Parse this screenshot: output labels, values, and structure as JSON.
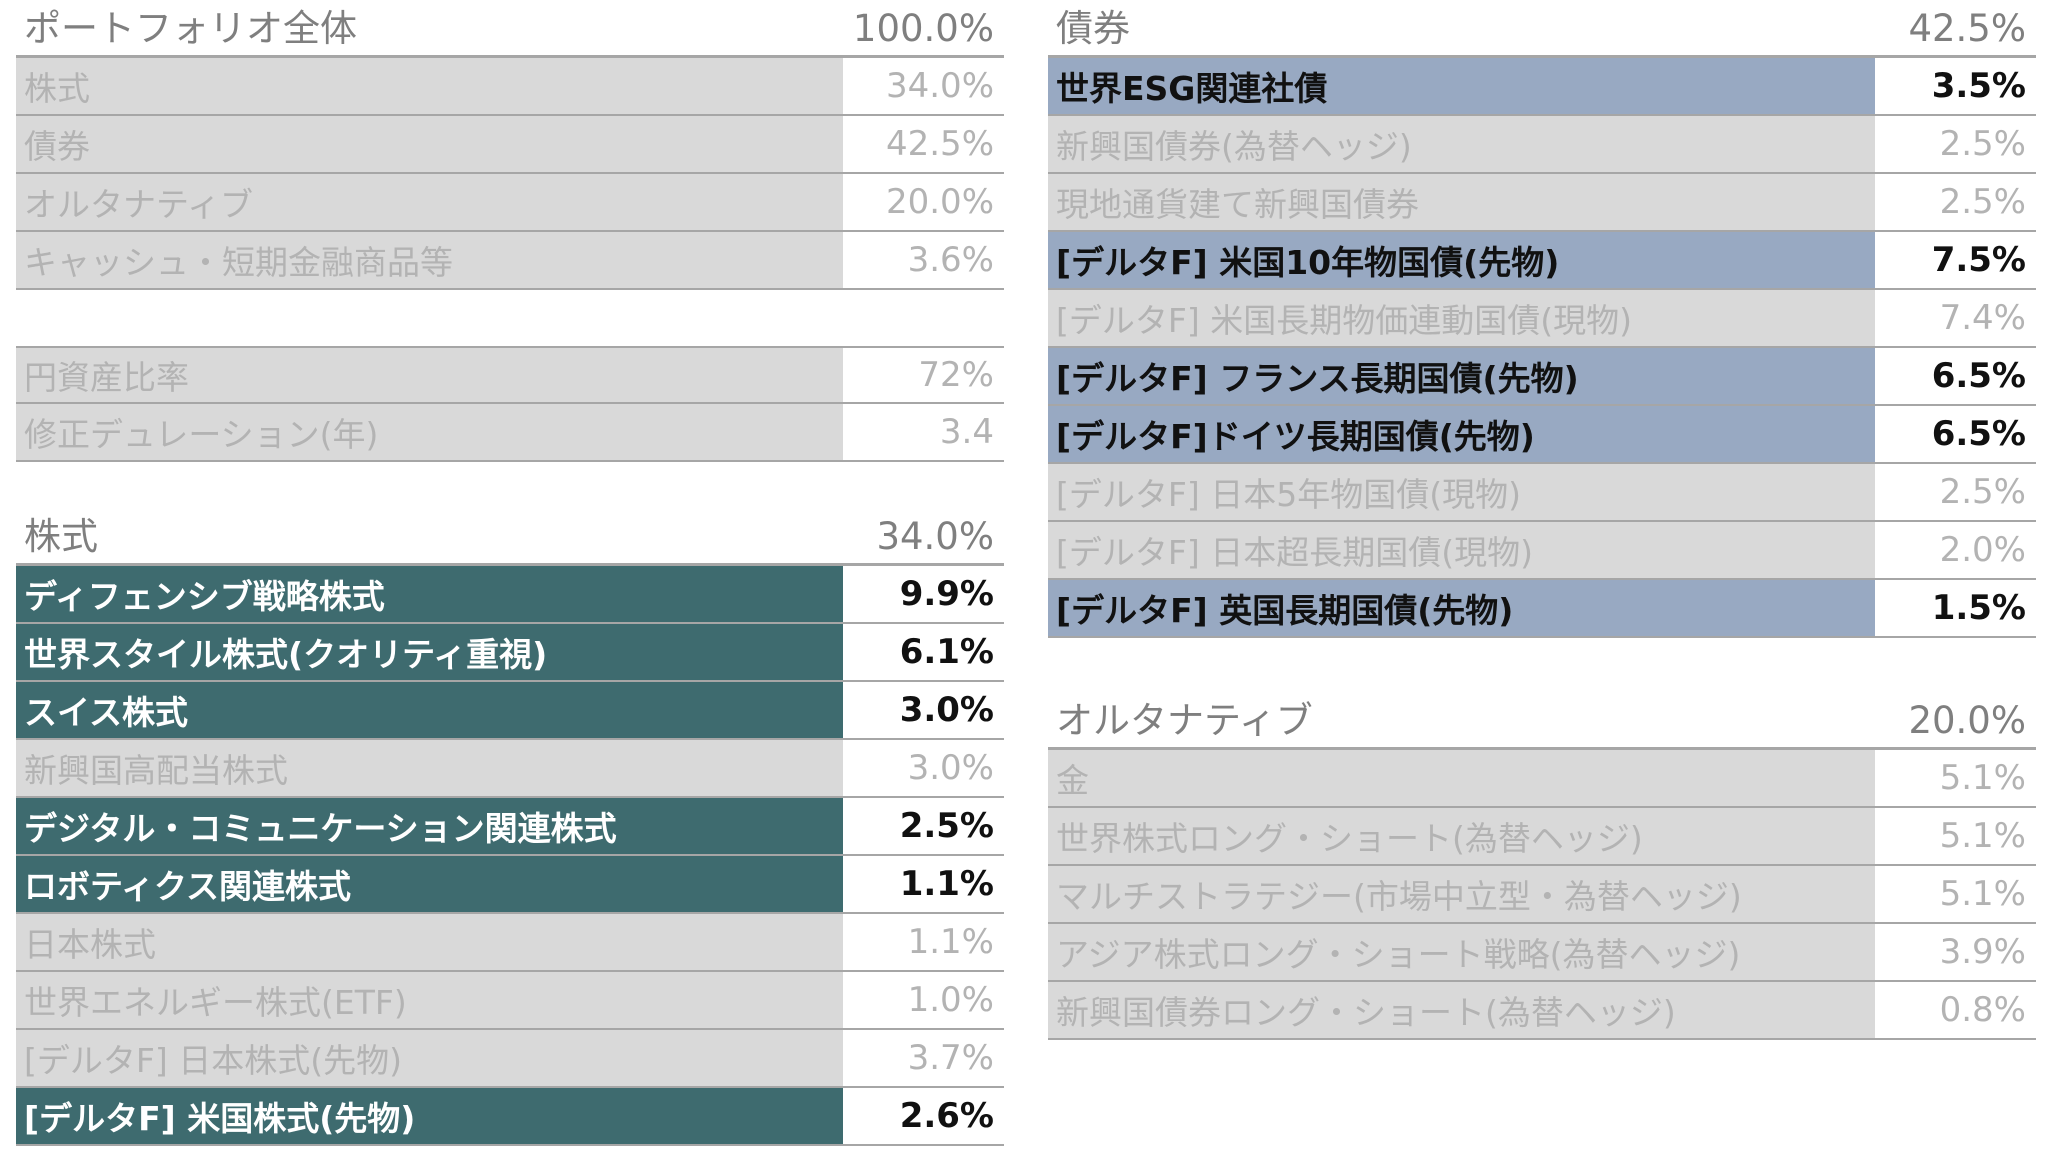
{
  "portfolio": {
    "title": "ポートフォリオ全体",
    "total": "100.0%",
    "rows": [
      {
        "label": "株式",
        "value": "34.0%"
      },
      {
        "label": "債券",
        "value": "42.5%"
      },
      {
        "label": "オルタナティブ",
        "value": "20.0%"
      },
      {
        "label": "キャッシュ・短期金融商品等",
        "value": "3.6%"
      }
    ]
  },
  "metrics": {
    "rows": [
      {
        "label": "円資産比率",
        "value": "72%"
      },
      {
        "label": "修正デュレーション(年)",
        "value": "3.4"
      }
    ]
  },
  "equity": {
    "title": "株式",
    "total": "34.0%",
    "highlight_color": "#3e6b6f",
    "rows": [
      {
        "label": "ディフェンシブ戦略株式",
        "value": "9.9%"
      },
      {
        "label": "世界スタイル株式(クオリティ重視)",
        "value": "6.1%"
      },
      {
        "label": "スイス株式",
        "value": "3.0%"
      },
      {
        "label": "新興国高配当株式",
        "value": "3.0%"
      },
      {
        "label": "デジタル・コミュニケーション関連株式",
        "value": "2.5%"
      },
      {
        "label": "ロボティクス関連株式",
        "value": "1.1%"
      },
      {
        "label": "日本株式",
        "value": "1.1%"
      },
      {
        "label": "世界エネルギー株式(ETF)",
        "value": "1.0%"
      },
      {
        "label": "[デルタF] 日本株式(先物)",
        "value": "3.7%"
      },
      {
        "label": "[デルタF] 米国株式(先物)",
        "value": "2.6%"
      }
    ]
  },
  "bonds": {
    "title": "債券",
    "total": "42.5%",
    "highlight_color": "#98a9c2",
    "rows": [
      {
        "label": "世界ESG関連社債",
        "value": "3.5%"
      },
      {
        "label": "新興国債券(為替ヘッジ)",
        "value": "2.5%"
      },
      {
        "label": "現地通貨建て新興国債券",
        "value": "2.5%"
      },
      {
        "label": "[デルタF] 米国10年物国債(先物)",
        "value": "7.5%"
      },
      {
        "label": "[デルタF] 米国長期物価連動国債(現物)",
        "value": "7.4%"
      },
      {
        "label": "[デルタF] フランス長期国債(先物)",
        "value": "6.5%"
      },
      {
        "label": "[デルタF]ドイツ長期国債(先物)",
        "value": "6.5%"
      },
      {
        "label": "[デルタF] 日本5年物国債(現物)",
        "value": "2.5%"
      },
      {
        "label": "[デルタF] 日本超長期国債(現物)",
        "value": "2.0%"
      },
      {
        "label": "[デルタF] 英国長期国債(先物)",
        "value": "1.5%"
      }
    ]
  },
  "alternatives": {
    "title": "オルタナティブ",
    "total": "20.0%",
    "rows": [
      {
        "label": "金",
        "value": "5.1%"
      },
      {
        "label": "世界株式ロング・ショート(為替ヘッジ)",
        "value": "5.1%"
      },
      {
        "label": "マルチストラテジー(市場中立型・為替ヘッジ)",
        "value": "5.1%"
      },
      {
        "label": "アジア株式ロング・ショート戦略(為替ヘッジ)",
        "value": "3.9%"
      },
      {
        "label": "新興国債券ロング・ショート(為替ヘッジ)",
        "value": "0.8%"
      }
    ]
  }
}
